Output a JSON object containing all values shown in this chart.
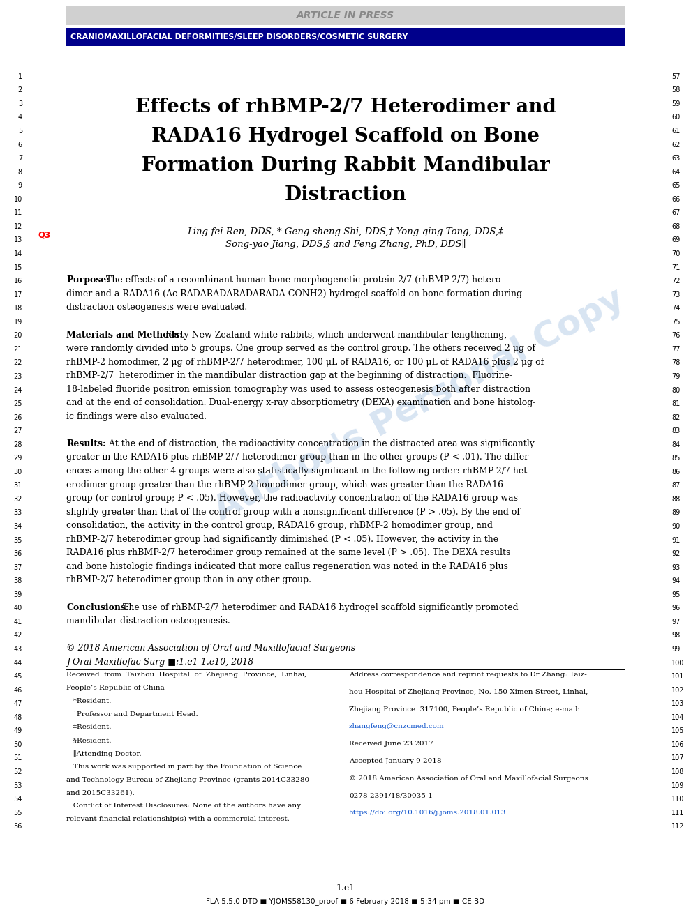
{
  "background_color": "#ffffff",
  "header_bar_color": "#d0d0d0",
  "header_bar_text": "ARTICLE IN PRESS",
  "header_bar_text_color": "#888888",
  "subheader_bar_color": "#00008B",
  "subheader_bar_text": "CRANIOMAXILLOFACIAL DEFORMITIES/SLEEP DISORDERS/COSMETIC SURGERY",
  "subheader_bar_text_color": "#ffffff",
  "title_lines": [
    "Effects of rhBMP-2/7 Heterodimer and",
    "RADA16 Hydrogel Scaffold on Bone",
    "Formation During Rabbit Mandibular",
    "Distraction"
  ],
  "authors_line1": "Ling-fei Ren, DDS, * Geng-sheng Shi, DDS,† Yong-qing Tong, DDS,‡",
  "authors_line2": "Song-yao Jiang, DDS,§ and Feng Zhang, PhD, DDS∥",
  "q3_label": "Q3",
  "watermark_text": "Author's\nPersonal\nCopy",
  "left_line_numbers": [
    "1",
    "2",
    "3",
    "4",
    "5",
    "6",
    "7",
    "8",
    "9",
    "10",
    "11",
    "12",
    "13",
    "14",
    "15",
    "16",
    "17",
    "18",
    "19",
    "20",
    "21",
    "22",
    "23",
    "24",
    "25",
    "26",
    "27",
    "28",
    "29",
    "30",
    "31",
    "32",
    "33",
    "34",
    "35",
    "36",
    "37",
    "38",
    "39",
    "40",
    "41",
    "42",
    "43",
    "44",
    "45",
    "46",
    "47",
    "48",
    "49",
    "50",
    "51",
    "52",
    "53",
    "54",
    "55",
    "56"
  ],
  "right_line_numbers": [
    "57",
    "58",
    "59",
    "60",
    "61",
    "62",
    "63",
    "64",
    "65",
    "66",
    "67",
    "68",
    "69",
    "70",
    "71",
    "72",
    "73",
    "74",
    "75",
    "76",
    "77",
    "78",
    "79",
    "80",
    "81",
    "82",
    "83",
    "84",
    "85",
    "86",
    "87",
    "88",
    "89",
    "90",
    "91",
    "92",
    "93",
    "94",
    "95",
    "96",
    "97",
    "98",
    "99",
    "100",
    "101",
    "102",
    "103",
    "104",
    "105",
    "106",
    "107",
    "108",
    "109",
    "110",
    "111",
    "112"
  ],
  "body_lines": [
    {
      "type": "blank"
    },
    {
      "type": "blank"
    },
    {
      "type": "blank"
    },
    {
      "type": "blank"
    },
    {
      "type": "blank"
    },
    {
      "type": "blank"
    },
    {
      "type": "blank"
    },
    {
      "type": "blank"
    },
    {
      "type": "blank"
    },
    {
      "type": "blank"
    },
    {
      "type": "blank"
    },
    {
      "type": "blank"
    },
    {
      "type": "blank"
    },
    {
      "type": "blank"
    },
    {
      "type": "blank"
    },
    {
      "type": "para_start",
      "label": "Purpose:",
      "text": "  The effects of a recombinant human bone morphogenetic protein-2/7 (rhBMP-2/7) hetero-"
    },
    {
      "type": "para_cont",
      "text": "dimer and a RADA16 (Ac-RADARADARADARADA-CONH2) hydrogel scaffold on bone formation during"
    },
    {
      "type": "para_cont",
      "text": "distraction osteogenesis were evaluated."
    },
    {
      "type": "blank"
    },
    {
      "type": "para_start",
      "label": "Materials and Methods:",
      "text": "  Forty New Zealand white rabbits, which underwent mandibular lengthening,"
    },
    {
      "type": "para_cont",
      "text": "were randomly divided into 5 groups. One group served as the control group. The others received 2 μg of"
    },
    {
      "type": "para_cont",
      "text": "rhBMP-2 homodimer, 2 μg of rhBMP-2/7 heterodimer, 100 μL of RADA16, or 100 μL of RADA16 plus 2 μg of"
    },
    {
      "type": "para_cont",
      "text": "rhBMP-2/7  heterodimer in the mandibular distraction gap at the beginning of distraction.  Fluorine-"
    },
    {
      "type": "para_cont",
      "text": "18-labeled fluoride positron emission tomography was used to assess osteogenesis both after distraction"
    },
    {
      "type": "para_cont",
      "text": "and at the end of consolidation. Dual-energy x-ray absorptiometry (DEXA) examination and bone histolog-"
    },
    {
      "type": "para_cont",
      "text": "ic findings were also evaluated."
    },
    {
      "type": "blank"
    },
    {
      "type": "para_start",
      "label": "Results:",
      "text": "   At the end of distraction, the radioactivity concentration in the distracted area was significantly"
    },
    {
      "type": "para_cont",
      "text": "greater in the RADA16 plus rhBMP-2/7 heterodimer group than in the other groups (P < .01). The differ-"
    },
    {
      "type": "para_cont",
      "text": "ences among the other 4 groups were also statistically significant in the following order: rhBMP-2/7 het-"
    },
    {
      "type": "para_cont",
      "text": "erodimer group greater than the rhBMP-2 homodimer group, which was greater than the RADA16"
    },
    {
      "type": "para_cont",
      "text": "group (or control group; P < .05). However, the radioactivity concentration of the RADA16 group was"
    },
    {
      "type": "para_cont",
      "text": "slightly greater than that of the control group with a nonsignificant difference (P > .05). By the end of"
    },
    {
      "type": "para_cont",
      "text": "consolidation, the activity in the control group, RADA16 group, rhBMP-2 homodimer group, and"
    },
    {
      "type": "para_cont",
      "text": "rhBMP-2/7 heterodimer group had significantly diminished (P < .05). However, the activity in the"
    },
    {
      "type": "para_cont",
      "text": "RADA16 plus rhBMP-2/7 heterodimer group remained at the same level (P > .05). The DEXA results"
    },
    {
      "type": "para_cont",
      "text": "and bone histologic findings indicated that more callus regeneration was noted in the RADA16 plus"
    },
    {
      "type": "para_cont",
      "text": "rhBMP-2/7 heterodimer group than in any other group."
    },
    {
      "type": "blank"
    },
    {
      "type": "para_start",
      "label": "Conclusions:",
      "text": "  The use of rhBMP-2/7 heterodimer and RADA16 hydrogel scaffold significantly promoted"
    },
    {
      "type": "para_cont",
      "text": "mandibular distraction osteogenesis."
    },
    {
      "type": "blank"
    },
    {
      "type": "italic_text",
      "text": "© 2018 American Association of Oral and Maxillofacial Surgeons"
    },
    {
      "type": "italic_text",
      "text": "J Oral Maxillofac Surg ■:1.e1-1.e10, 2018"
    },
    {
      "type": "blank"
    },
    {
      "type": "blank"
    },
    {
      "type": "blank"
    },
    {
      "type": "blank"
    },
    {
      "type": "blank"
    },
    {
      "type": "blank"
    },
    {
      "type": "blank"
    }
  ],
  "footer_left_col1": [
    "Received  from  Taizhou  Hospital  of  Zhejiang  Province,  Linhai,",
    "People’s Republic of China",
    "   *Resident.",
    "   †Professor and Department Head.",
    "   ‡Resident.",
    "   §Resident.",
    "   ∥Attending Doctor.",
    "   This work was supported in part by the Foundation of Science",
    "and Technology Bureau of Zhejiang Province (grants 2014C33280",
    "and 2015C33261).",
    "   Conflict of Interest Disclosures: None of the authors have any",
    "relevant financial relationship(s) with a commercial interest."
  ],
  "footer_right_col1": [
    "Address correspondence and reprint requests to Dr Zhang: Taiz-",
    "hou Hospital of Zhejiang Province, No. 150 Ximen Street, Linhai,",
    "Zhejiang Province  317100, People’s Republic of China; e-mail:",
    "zhangfeng@cnzcmed.com",
    "Received June 23 2017",
    "Accepted January 9 2018",
    "© 2018 American Association of Oral and Maxillofacial Surgeons",
    "0278-2391/18/30035-1",
    "https://doi.org/10.1016/j.joms.2018.01.013"
  ],
  "footer_email_color": "#1155CC",
  "footer_doi_color": "#1155CC",
  "page_number": "1.e1",
  "footer_fla": "FLA 5.5.0 DTD ■ YJOMS58130_proof ■ 6 February 2018 ■ 5:34 pm ■ CE BD"
}
